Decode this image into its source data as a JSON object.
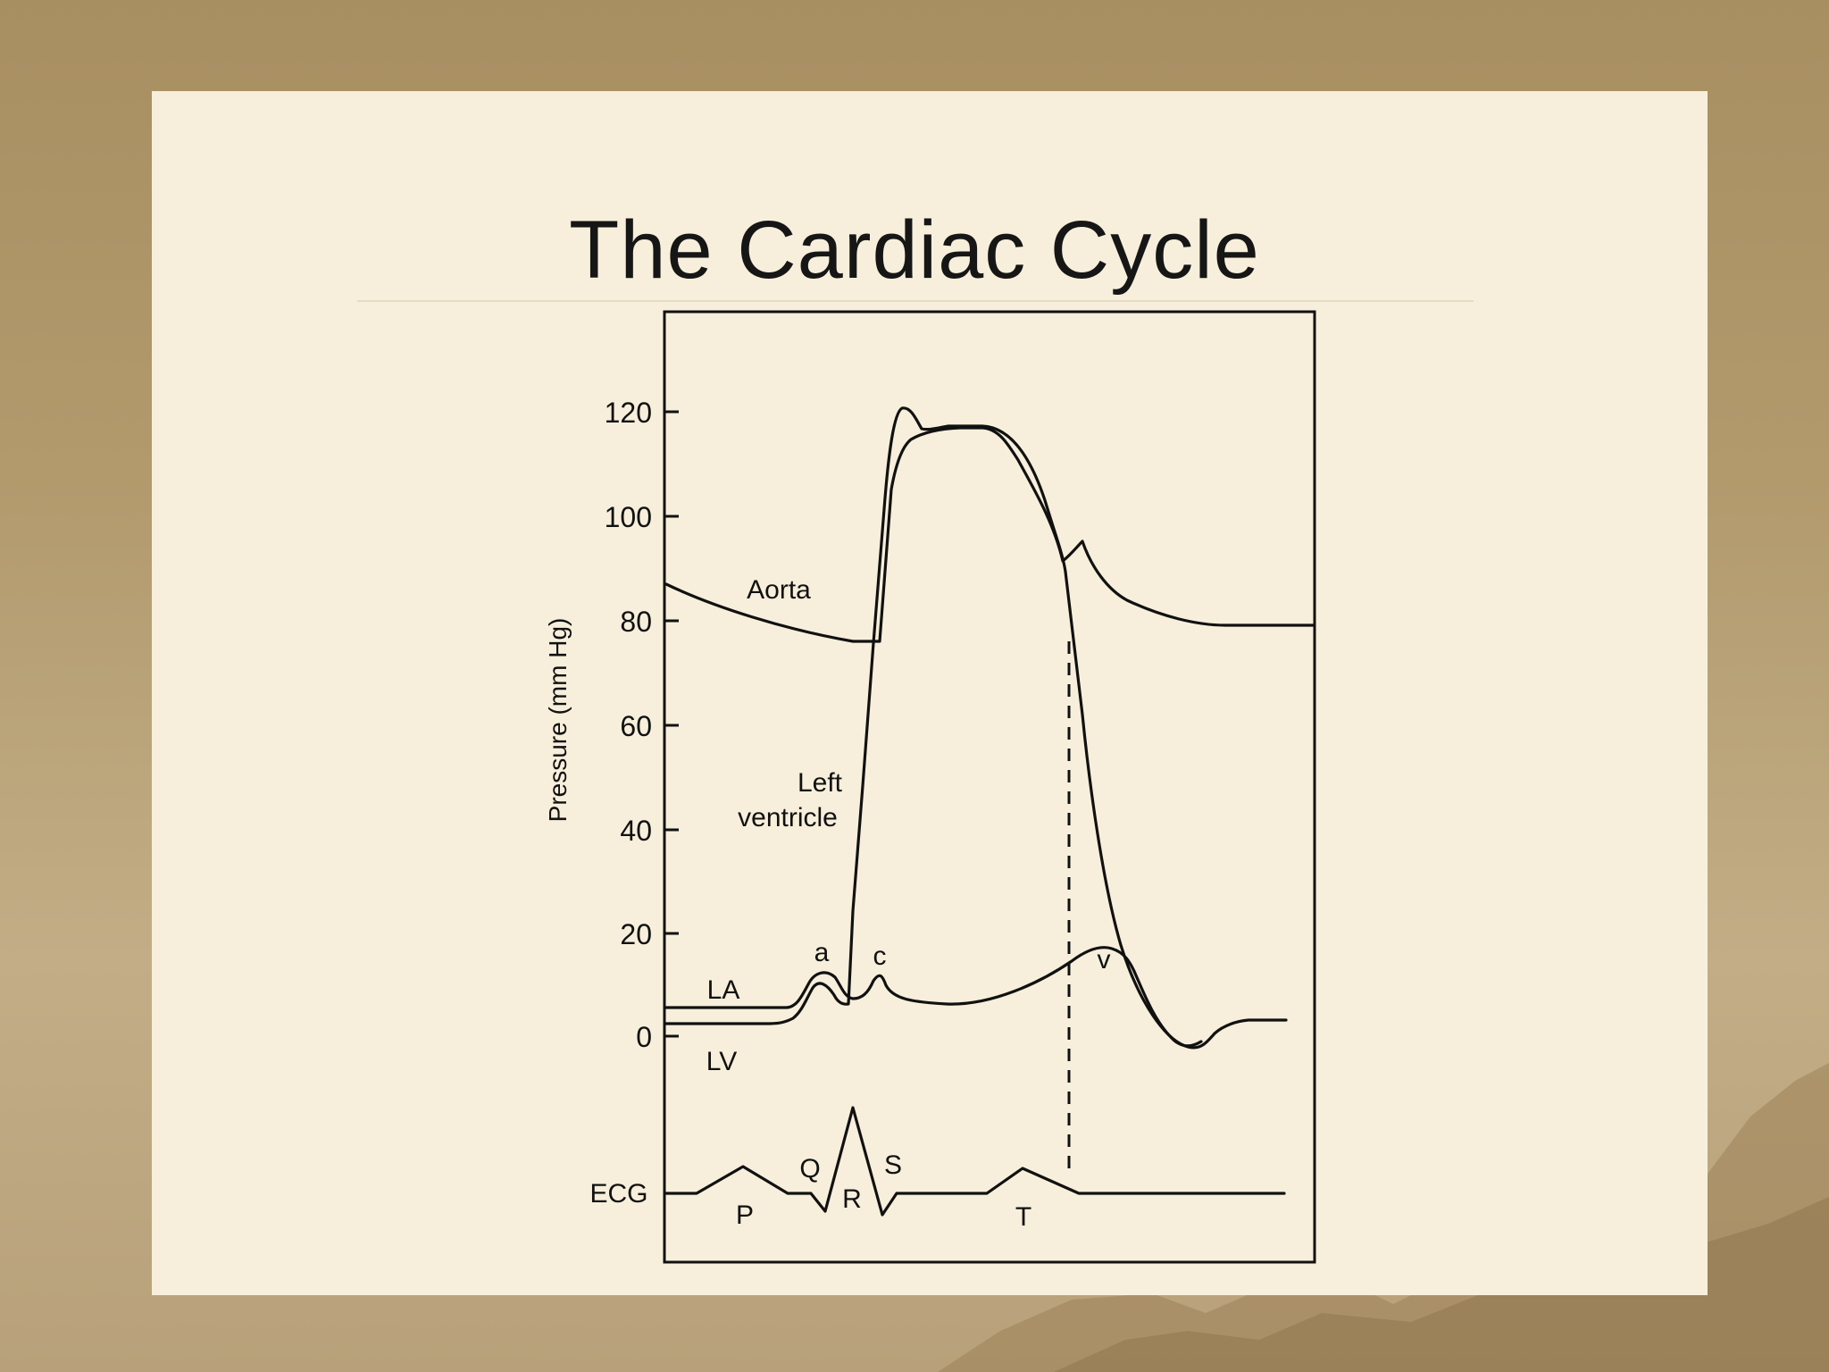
{
  "slide": {
    "title": "The Cardiac Cycle",
    "background_color": "#a88f62",
    "panel_color": "#f7efdb"
  },
  "diagram": {
    "y_axis_label": "Pressure (mm Hg)",
    "y_ticks": [
      "120",
      "100",
      "80",
      "60",
      "40",
      "20",
      "0"
    ],
    "curve_labels": {
      "aorta": "Aorta",
      "left_ventricle_line1": "Left",
      "left_ventricle_line2": "ventricle",
      "la": "LA",
      "lv": "LV"
    },
    "wave_labels": {
      "a": "a",
      "c": "c",
      "v": "v"
    },
    "ecg": {
      "label": "ECG",
      "p": "P",
      "q": "Q",
      "r": "R",
      "s": "S",
      "t": "T"
    }
  }
}
